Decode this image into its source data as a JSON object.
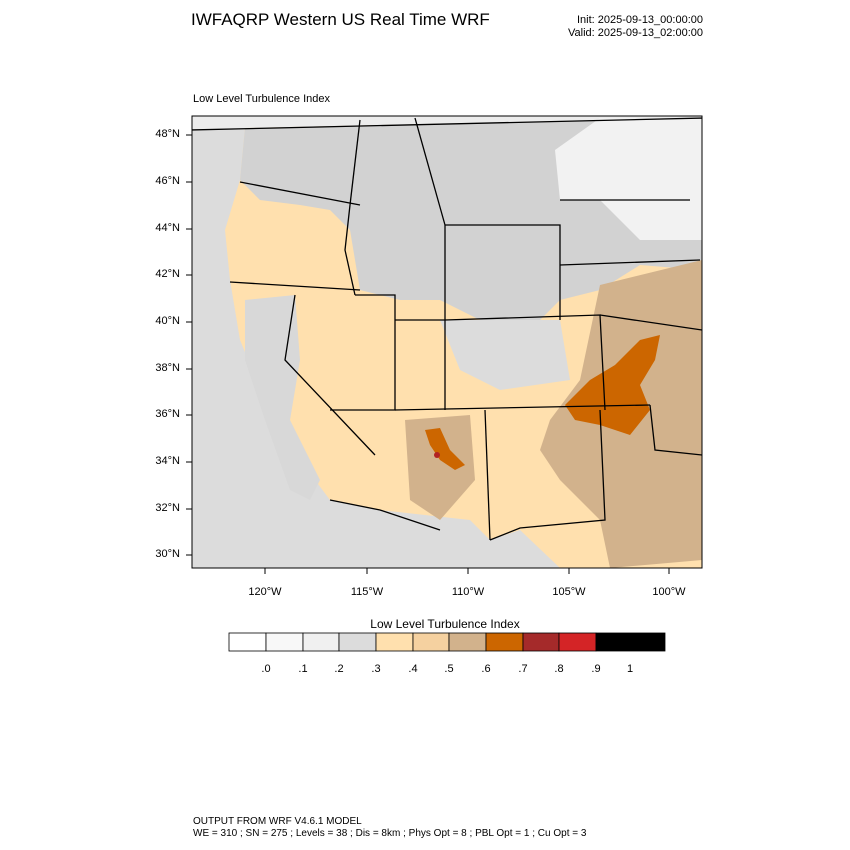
{
  "header": {
    "title": "IWFAQRP Western US Real Time WRF",
    "init": "Init: 2025-09-13_00:00:00",
    "valid": "Valid: 2025-09-13_02:00:00"
  },
  "panel": {
    "title": "Low Level Turbulence Index"
  },
  "map": {
    "lat_ticks": [
      "48°N",
      "46°N",
      "44°N",
      "42°N",
      "40°N",
      "38°N",
      "36°N",
      "34°N",
      "32°N",
      "30°N"
    ],
    "lon_ticks": [
      "120°W",
      "115°W",
      "110°W",
      "105°W",
      "100°W"
    ],
    "colors": {
      "ocean": "#dcdcdc",
      "canada": "#ececec",
      "low": "#d2d2d2",
      "mid": "#ffe0ae",
      "high": "#d2b28c",
      "peak": "#cc6600",
      "extreme": "#b22222"
    }
  },
  "colorbar": {
    "title": "Low Level Turbulence Index",
    "labels": [
      ".0",
      ".1",
      ".2",
      ".3",
      ".4",
      ".5",
      ".6",
      ".7",
      ".8",
      ".9",
      "1"
    ],
    "colors": [
      "#ffffff",
      "#f8f8f8",
      "#f0f0f0",
      "#dcdcdc",
      "#ffe0ae",
      "#f5d1a0",
      "#d2b28c",
      "#cc6600",
      "#a52a2a",
      "#d42426",
      "#000000"
    ]
  },
  "footer": {
    "line1": "OUTPUT FROM WRF V4.6.1 MODEL",
    "line2": "WE = 310 ; SN = 275 ; Levels = 38 ; Dis = 8km ; Phys Opt = 8 ; PBL Opt = 1 ; Cu Opt = 3"
  }
}
